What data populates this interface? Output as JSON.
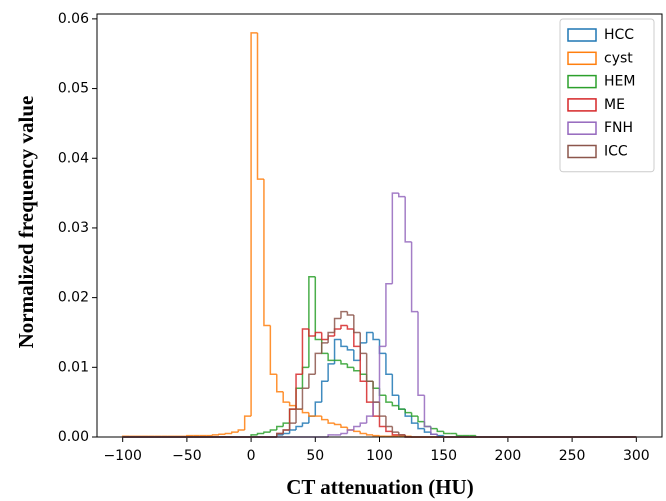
{
  "chart_data": {
    "type": "histogram",
    "xlabel": "CT attenuation (HU)",
    "ylabel": "Normalized frequency value",
    "bins": [
      -100,
      -95,
      -90,
      -85,
      -80,
      -75,
      -70,
      -65,
      -60,
      -55,
      -50,
      -45,
      -40,
      -35,
      -30,
      -25,
      -20,
      -15,
      -10,
      -5,
      0,
      5,
      10,
      15,
      20,
      25,
      30,
      35,
      40,
      45,
      50,
      55,
      60,
      65,
      70,
      75,
      80,
      85,
      90,
      95,
      100,
      105,
      110,
      115,
      120,
      125,
      130,
      135,
      140,
      145,
      150,
      155,
      160,
      165,
      170,
      175,
      180,
      185,
      190,
      195,
      200,
      205,
      210,
      215,
      220,
      225,
      230,
      235,
      240,
      245,
      250,
      255,
      260,
      265,
      270,
      275,
      280,
      285,
      290,
      295,
      300
    ],
    "series": [
      {
        "name": "HCC",
        "color": "#1f77b4",
        "values": [
          0,
          0,
          0,
          0,
          0,
          0,
          0,
          0,
          0,
          0,
          0,
          0,
          0,
          0,
          0,
          0,
          0,
          0,
          0,
          0,
          0,
          0,
          0,
          0,
          0.0003,
          0.0005,
          0.001,
          0.0015,
          0.002,
          0.003,
          0.005,
          0.008,
          0.0105,
          0.014,
          0.013,
          0.0125,
          0.011,
          0.0135,
          0.015,
          0.014,
          0.012,
          0.009,
          0.006,
          0.004,
          0.003,
          0.002,
          0.0012,
          0.0007,
          0.0004,
          0.0002,
          0,
          0,
          0,
          0,
          0,
          0,
          0,
          0,
          0,
          0,
          0,
          0,
          0,
          0,
          0,
          0,
          0,
          0,
          0,
          0,
          0,
          0,
          0,
          0,
          0,
          0,
          0,
          0,
          0,
          0
        ]
      },
      {
        "name": "cyst",
        "color": "#ff7f0e",
        "values": [
          0.0001,
          0.0001,
          0.0001,
          0.0001,
          0.0001,
          0.0001,
          0.0001,
          0.0001,
          0.0001,
          0.0001,
          0.0002,
          0.0002,
          0.0002,
          0.0002,
          0.0003,
          0.0004,
          0.0005,
          0.0007,
          0.001,
          0.003,
          0.058,
          0.037,
          0.016,
          0.009,
          0.0065,
          0.005,
          0.0045,
          0.004,
          0.0035,
          0.003,
          0.003,
          0.0025,
          0.002,
          0.0018,
          0.0014,
          0.001,
          0.0008,
          0.0005,
          0.0003,
          0.0002,
          0.0001,
          0.0001,
          0.0001,
          0.0001,
          0.0001,
          0,
          0,
          0,
          0,
          0,
          0,
          0,
          0,
          0,
          0,
          0,
          0,
          0,
          0,
          0,
          0,
          0,
          0,
          0,
          0,
          0,
          0,
          0,
          0,
          0,
          0,
          0,
          0,
          0,
          0,
          0,
          0,
          0,
          0,
          0
        ]
      },
      {
        "name": "HEM",
        "color": "#2ca02c",
        "values": [
          0,
          0,
          0,
          0,
          0,
          0,
          0,
          0,
          0,
          0,
          0,
          0,
          0,
          0,
          0,
          0,
          0,
          0,
          0,
          0,
          0.0003,
          0.0005,
          0.0007,
          0.001,
          0.0015,
          0.002,
          0.004,
          0.007,
          0.01,
          0.023,
          0.014,
          0.012,
          0.011,
          0.011,
          0.0105,
          0.01,
          0.0095,
          0.009,
          0.008,
          0.007,
          0.006,
          0.005,
          0.0045,
          0.004,
          0.0035,
          0.003,
          0.0022,
          0.0015,
          0.0012,
          0.0008,
          0.0005,
          0.0005,
          0.0002,
          0.0002,
          0.0002,
          0,
          0,
          0,
          0,
          0,
          0,
          0,
          0,
          0,
          0,
          0,
          0,
          0,
          0,
          0,
          0,
          0,
          0,
          0,
          0,
          0,
          0,
          0,
          0,
          0
        ]
      },
      {
        "name": "ME",
        "color": "#d62728",
        "values": [
          0,
          0,
          0,
          0,
          0,
          0,
          0,
          0,
          0,
          0,
          0,
          0,
          0,
          0,
          0,
          0,
          0,
          0,
          0,
          0,
          0,
          0,
          0,
          0,
          0.0005,
          0.001,
          0.004,
          0.009,
          0.0155,
          0.0145,
          0.015,
          0.014,
          0.0145,
          0.0155,
          0.016,
          0.0155,
          0.013,
          0.008,
          0.005,
          0.003,
          0.0015,
          0.0008,
          0.0003,
          0.0003,
          0,
          0,
          0,
          0,
          0,
          0,
          0,
          0,
          0,
          0,
          0,
          0,
          0,
          0,
          0,
          0,
          0,
          0,
          0,
          0,
          0,
          0,
          0,
          0,
          0,
          0,
          0,
          0,
          0,
          0,
          0,
          0,
          0,
          0,
          0,
          0
        ]
      },
      {
        "name": "FNH",
        "color": "#9467bd",
        "values": [
          0,
          0,
          0,
          0,
          0,
          0,
          0,
          0,
          0,
          0,
          0,
          0,
          0,
          0,
          0,
          0,
          0,
          0,
          0,
          0,
          0,
          0,
          0,
          0,
          0,
          0,
          0,
          0,
          0,
          0,
          0,
          0,
          0.0003,
          0.0003,
          0.0005,
          0.001,
          0.0015,
          0.002,
          0.003,
          0.005,
          0.013,
          0.022,
          0.035,
          0.0345,
          0.028,
          0.018,
          0.006,
          0.0015,
          0.0004,
          0,
          0,
          0,
          0,
          0,
          0,
          0,
          0,
          0,
          0,
          0,
          0,
          0,
          0,
          0,
          0,
          0,
          0,
          0,
          0,
          0,
          0,
          0,
          0,
          0,
          0,
          0,
          0,
          0,
          0,
          0
        ]
      },
      {
        "name": "ICC",
        "color": "#8c564b",
        "values": [
          0,
          0,
          0,
          0,
          0,
          0,
          0,
          0,
          0,
          0,
          0,
          0,
          0,
          0,
          0,
          0,
          0,
          0,
          0,
          0,
          0,
          0,
          0,
          0,
          0.0005,
          0.001,
          0.002,
          0.004,
          0.007,
          0.009,
          0.012,
          0.0135,
          0.015,
          0.017,
          0.018,
          0.0175,
          0.015,
          0.012,
          0.008,
          0.005,
          0.003,
          0.0015,
          0.0007,
          0.0003,
          0,
          0,
          0,
          0,
          0,
          0,
          0,
          0,
          0,
          0,
          0,
          0,
          0,
          0,
          0,
          0,
          0,
          0,
          0,
          0,
          0,
          0,
          0,
          0,
          0,
          0,
          0,
          0,
          0,
          0,
          0,
          0,
          0,
          0,
          0,
          0
        ]
      }
    ],
    "xlim": [
      -120,
      320
    ],
    "xticks": [
      {
        "value": -100,
        "label": "−100"
      },
      {
        "value": -50,
        "label": "−50"
      },
      0,
      50,
      100,
      150,
      200,
      250,
      300
    ],
    "ylim": [
      0,
      0.0607
    ],
    "yticks": [
      {
        "value": 0,
        "label": "0.00"
      },
      {
        "value": 0.01,
        "label": "0.01"
      },
      {
        "value": 0.02,
        "label": "0.02"
      },
      {
        "value": 0.03,
        "label": "0.03"
      },
      {
        "value": 0.04,
        "label": "0.04"
      },
      {
        "value": 0.05,
        "label": "0.05"
      },
      {
        "value": 0.06,
        "label": "0.06"
      }
    ],
    "legend": "upper right",
    "grid": false
  }
}
